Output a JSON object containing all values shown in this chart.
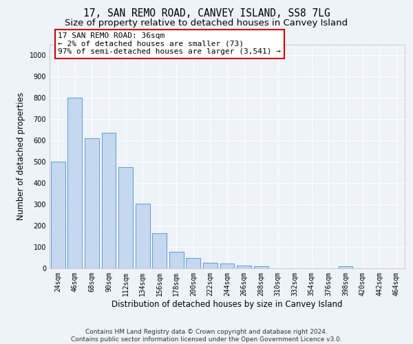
{
  "title": "17, SAN REMO ROAD, CANVEY ISLAND, SS8 7LG",
  "subtitle": "Size of property relative to detached houses in Canvey Island",
  "xlabel": "Distribution of detached houses by size in Canvey Island",
  "ylabel": "Number of detached properties",
  "categories": [
    "24sqm",
    "46sqm",
    "68sqm",
    "90sqm",
    "112sqm",
    "134sqm",
    "156sqm",
    "178sqm",
    "200sqm",
    "222sqm",
    "244sqm",
    "266sqm",
    "288sqm",
    "310sqm",
    "332sqm",
    "354sqm",
    "376sqm",
    "398sqm",
    "420sqm",
    "442sqm",
    "464sqm"
  ],
  "values": [
    500,
    800,
    610,
    635,
    475,
    305,
    165,
    78,
    50,
    27,
    22,
    13,
    10,
    0,
    0,
    0,
    0,
    10,
    0,
    0,
    0
  ],
  "bar_color": "#c5d8f0",
  "bar_edge_color": "#5b9bd5",
  "annotation_line1": "17 SAN REMO ROAD: 36sqm",
  "annotation_line2": "← 2% of detached houses are smaller (73)",
  "annotation_line3": "97% of semi-detached houses are larger (3,541) →",
  "annotation_box_color": "#ffffff",
  "annotation_box_edge_color": "#cc0000",
  "ylim": [
    0,
    1050
  ],
  "yticks": [
    0,
    100,
    200,
    300,
    400,
    500,
    600,
    700,
    800,
    900,
    1000
  ],
  "background_color": "#eef2f9",
  "grid_color": "#ffffff",
  "footer_line1": "Contains HM Land Registry data © Crown copyright and database right 2024.",
  "footer_line2": "Contains public sector information licensed under the Open Government Licence v3.0.",
  "title_fontsize": 10.5,
  "subtitle_fontsize": 9.5,
  "xlabel_fontsize": 8.5,
  "ylabel_fontsize": 8.5,
  "tick_fontsize": 7,
  "annotation_fontsize": 8,
  "footer_fontsize": 6.5
}
